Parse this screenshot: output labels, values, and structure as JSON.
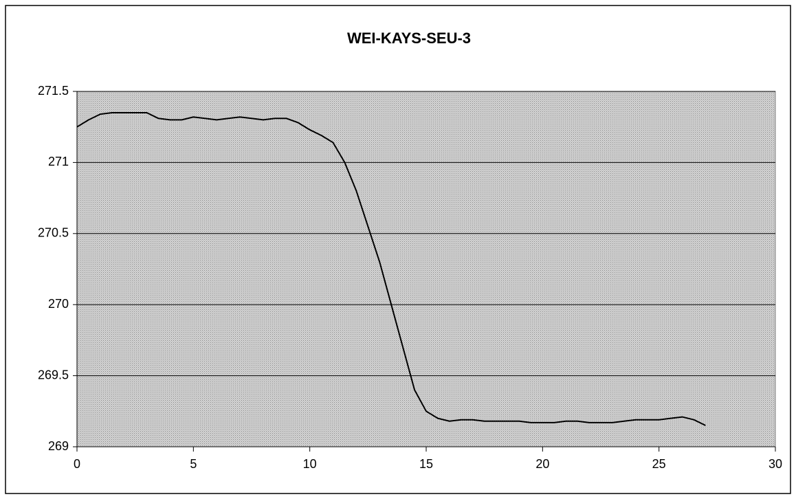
{
  "chart_data": {
    "type": "line",
    "title": "WEI-KAYS-SEU-3",
    "x": [
      0,
      0.5,
      1,
      1.5,
      2,
      2.5,
      3,
      3.5,
      4,
      4.5,
      5,
      5.5,
      6,
      6.5,
      7,
      7.5,
      8,
      8.5,
      9,
      9.5,
      10,
      10.5,
      11,
      11.5,
      12,
      12.5,
      13,
      13.5,
      14,
      14.5,
      15,
      15.5,
      16,
      16.5,
      17,
      17.5,
      18,
      18.5,
      19,
      19.5,
      20,
      20.5,
      21,
      21.5,
      22,
      22.5,
      23,
      23.5,
      24,
      24.5,
      25,
      25.5,
      26,
      26.5,
      27
    ],
    "series": [
      {
        "color": "#000000",
        "values": [
          271.25,
          271.3,
          271.34,
          271.35,
          271.35,
          271.35,
          271.35,
          271.31,
          271.3,
          271.3,
          271.32,
          271.31,
          271.3,
          271.31,
          271.32,
          271.31,
          271.3,
          271.31,
          271.31,
          271.28,
          271.23,
          271.19,
          271.14,
          271.0,
          270.8,
          270.55,
          270.3,
          270.0,
          269.7,
          269.4,
          269.25,
          269.2,
          269.18,
          269.19,
          269.19,
          269.18,
          269.18,
          269.18,
          269.18,
          269.17,
          269.17,
          269.17,
          269.18,
          269.18,
          269.17,
          269.17,
          269.17,
          269.18,
          269.19,
          269.19,
          269.19,
          269.2,
          269.21,
          269.19,
          269.15
        ]
      }
    ],
    "xlim": [
      0,
      30
    ],
    "xticks": [
      0,
      5,
      10,
      15,
      20,
      25,
      30
    ],
    "ylim": [
      269,
      271.5
    ],
    "yticks": [
      269,
      269.5,
      270,
      270.5,
      271,
      271.5
    ],
    "grid": true
  }
}
